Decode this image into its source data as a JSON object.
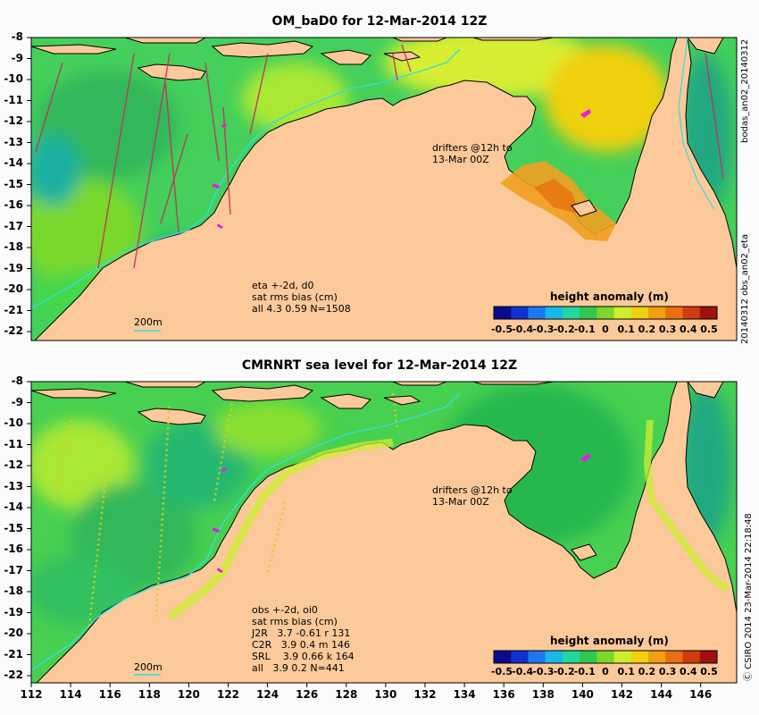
{
  "panels": [
    {
      "title": "OM_baD0 for 12-Mar-2014 12Z",
      "info": "eta +-2d, d0\nsat rms bias (cm)\nall 4.3 0.59 N=1508",
      "drifters": "drifters @12h to\n13-Mar 00Z",
      "scale_label": "200m",
      "side_labels": [
        "bodas_an02_20140312",
        "20140312 obs_an02_eta"
      ]
    },
    {
      "title": "CMRNRT sea level  for 12-Mar-2014 12Z",
      "info": "obs +-2d, oi0\nsat rms bias (cm)\nJ2R   3.7 -0.61 r 131\nC2R   3.9 0.4 m 146\nSRL    3.9 0.66 k 164\nall   3.9 0.2 N=441",
      "drifters": "drifters @12h to\n13-Mar 00Z",
      "scale_label": "200m",
      "side_labels": [
        "Ⓒ CSIRO 2014  23-Mar-2014 22:18:48"
      ]
    }
  ],
  "map": {
    "lat_ticks": [
      "-8",
      "-9",
      "-10",
      "-11",
      "-12",
      "-13",
      "-14",
      "-15",
      "-16",
      "-17",
      "-18",
      "-19",
      "-20",
      "-21",
      "-22"
    ],
    "lon_ticks": [
      "112",
      "114",
      "116",
      "118",
      "120",
      "122",
      "124",
      "126",
      "128",
      "130",
      "132",
      "134",
      "136",
      "138",
      "140",
      "142",
      "144",
      "146"
    ],
    "land_color": "#fcc99a",
    "coast_color": "#000000",
    "isobath_color": "#33dddd",
    "drifter_color": "#e020e0"
  },
  "colorbar": {
    "title": "height anomaly (m)",
    "ticks": [
      "-0.5",
      "-0.4",
      "-0.3",
      "-0.2",
      "-0.1",
      "0",
      "0.1",
      "0.2",
      "0.3",
      "0.4",
      "0.5"
    ],
    "colors": [
      "#0a0a8c",
      "#1030d0",
      "#1c78f0",
      "#18b8e8",
      "#20d8a0",
      "#30c850",
      "#7ad82a",
      "#ccee30",
      "#f0d010",
      "#f0a010",
      "#e87010",
      "#d03c10",
      "#a01010"
    ]
  }
}
